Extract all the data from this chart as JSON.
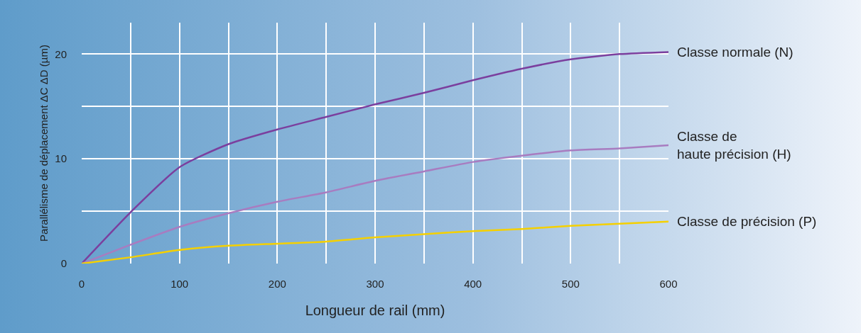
{
  "chart_data": {
    "type": "line",
    "xlabel": "Longueur de rail (mm)",
    "ylabel": "Parallélisme de déplacement ΔC ΔD (µm)",
    "x": [
      0,
      50,
      100,
      150,
      200,
      250,
      300,
      350,
      400,
      450,
      500,
      550,
      600
    ],
    "series": [
      {
        "name": "Classe normale (N)",
        "color": "#7b3f9e",
        "values": [
          0,
          4.9,
          9.2,
          11.4,
          12.8,
          14.0,
          15.2,
          16.3,
          17.5,
          18.6,
          19.5,
          20.0,
          20.2
        ]
      },
      {
        "name": "Classe de\nhaute précision (H)",
        "color": "#a87cc0",
        "values": [
          0,
          1.8,
          3.5,
          4.8,
          5.9,
          6.8,
          7.9,
          8.8,
          9.7,
          10.3,
          10.8,
          11.0,
          11.3
        ]
      },
      {
        "name": "Classe de précision (P)",
        "color": "#f5d000",
        "values": [
          0,
          0.6,
          1.3,
          1.7,
          1.9,
          2.1,
          2.5,
          2.8,
          3.1,
          3.3,
          3.6,
          3.8,
          4.0
        ]
      }
    ],
    "xlim": [
      0,
      600
    ],
    "ylim": [
      0,
      23
    ],
    "xticks": [
      0,
      {
        "value": 50,
        "label": null
      },
      100,
      {
        "value": 150,
        "label": null
      },
      200,
      {
        "value": 250,
        "label": null
      },
      300,
      {
        "value": 350,
        "label": null
      },
      400,
      {
        "value": 450,
        "label": null
      },
      500,
      {
        "value": 550,
        "label": null
      },
      600
    ],
    "yticks": [
      0,
      {
        "value": 5,
        "label": null
      },
      10,
      {
        "value": 15,
        "label": null
      },
      20
    ],
    "grid": true,
    "legend": false,
    "marker": "none",
    "line_style": "solid"
  }
}
